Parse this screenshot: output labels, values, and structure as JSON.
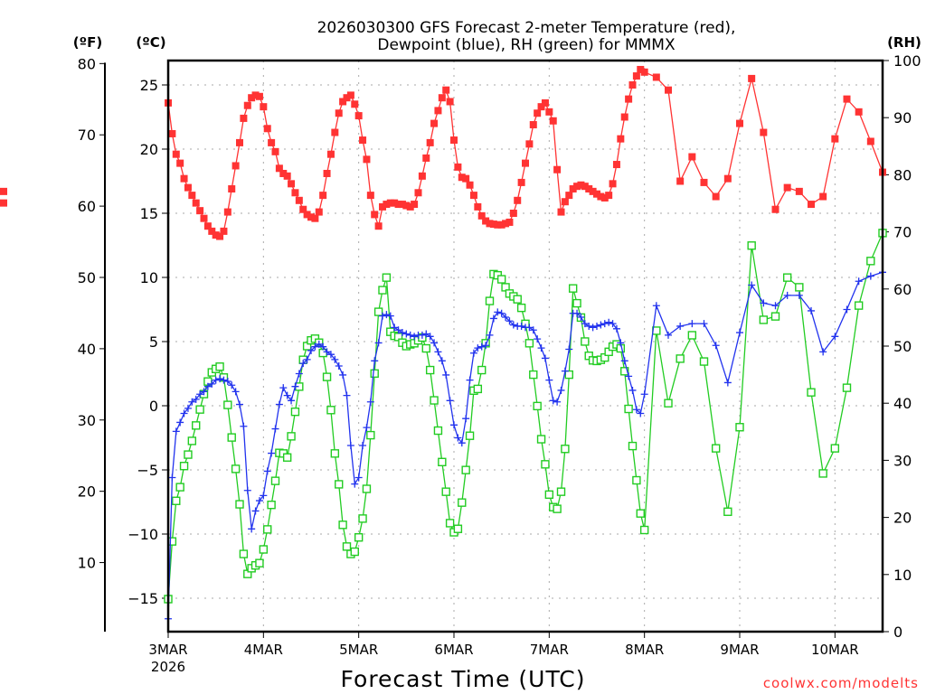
{
  "chart_data": {
    "type": "line",
    "title_line1": "2026030300 GFS Forecast 2-meter Temperature (red),",
    "title_line2": "Dewpoint (blue), RH (green) for MMMX",
    "unit_labels": {
      "fahrenheit": "(ºF)",
      "celsius": "(ºC)",
      "rh": "(RH)"
    },
    "xlabel": "Forecast Time (UTC)",
    "credit": "coolwx.com/modelts",
    "x_units": "forecast hour",
    "xlim": [
      0,
      180
    ],
    "x_ticks": [
      {
        "hour": 0,
        "label": "3MAR",
        "sublabel": "2026"
      },
      {
        "hour": 24,
        "label": "4MAR"
      },
      {
        "hour": 48,
        "label": "5MAR"
      },
      {
        "hour": 72,
        "label": "6MAR"
      },
      {
        "hour": 96,
        "label": "7MAR"
      },
      {
        "hour": 120,
        "label": "8MAR"
      },
      {
        "hour": 144,
        "label": "9MAR"
      },
      {
        "hour": 168,
        "label": "10MAR"
      }
    ],
    "celsius_axis": {
      "ylim": [
        -17.5,
        26.6
      ],
      "ticks": [
        25,
        20,
        15,
        10,
        5,
        0,
        -5,
        -10,
        -15
      ],
      "labels": [
        "25",
        "20",
        "15",
        "10",
        "5",
        "0",
        "−5",
        "−10",
        "−15"
      ]
    },
    "fahrenheit_axis": {
      "ticks": [
        80,
        70,
        60,
        50,
        40,
        30,
        20,
        10
      ],
      "labels": [
        "80",
        "70",
        "60",
        "50",
        "40",
        "30",
        "20",
        "10"
      ]
    },
    "rh_axis": {
      "ylim": [
        0,
        100
      ],
      "ticks": [
        100,
        90,
        80,
        70,
        60,
        50,
        40,
        30,
        20,
        10,
        0
      ],
      "labels": [
        "100",
        "90",
        "80",
        "70",
        "60",
        "50",
        "40",
        "30",
        "20",
        "10",
        "0"
      ]
    },
    "grid": true,
    "colors": {
      "temperature": "#ff3333",
      "dewpoint": "#2233ee",
      "rh": "#22cc22"
    },
    "hours": [
      0,
      1,
      2,
      3,
      4,
      5,
      6,
      7,
      8,
      9,
      10,
      11,
      12,
      13,
      14,
      15,
      16,
      17,
      18,
      19,
      20,
      21,
      22,
      23,
      24,
      25,
      26,
      27,
      28,
      29,
      30,
      31,
      32,
      33,
      34,
      35,
      36,
      37,
      38,
      39,
      40,
      41,
      42,
      43,
      44,
      45,
      46,
      47,
      48,
      49,
      50,
      51,
      52,
      53,
      54,
      55,
      56,
      57,
      58,
      59,
      60,
      61,
      62,
      63,
      64,
      65,
      66,
      67,
      68,
      69,
      70,
      71,
      72,
      73,
      74,
      75,
      76,
      77,
      78,
      79,
      80,
      81,
      82,
      83,
      84,
      85,
      86,
      87,
      88,
      89,
      90,
      91,
      92,
      93,
      94,
      95,
      96,
      97,
      98,
      99,
      100,
      101,
      102,
      103,
      104,
      105,
      106,
      107,
      108,
      109,
      110,
      111,
      112,
      113,
      114,
      115,
      116,
      117,
      118,
      119,
      120,
      123,
      126,
      129,
      132,
      135,
      138,
      141,
      144,
      147,
      150,
      153,
      156,
      159,
      162,
      165,
      168,
      171,
      174,
      177,
      180
    ],
    "series": [
      {
        "name": "Temperature",
        "units": "°C",
        "axis": "celsius",
        "marker": "filled-square",
        "values": [
          23.6,
          21.2,
          19.6,
          18.9,
          17.7,
          17.0,
          16.4,
          15.8,
          15.2,
          14.6,
          14.0,
          13.6,
          13.3,
          13.2,
          13.6,
          15.1,
          16.9,
          18.7,
          20.5,
          22.4,
          23.4,
          24.0,
          24.2,
          24.1,
          23.3,
          21.6,
          20.5,
          19.8,
          18.5,
          18.1,
          17.9,
          17.3,
          16.6,
          16.0,
          15.3,
          14.9,
          14.7,
          14.6,
          15.1,
          16.4,
          18.1,
          19.6,
          21.3,
          22.8,
          23.7,
          24.0,
          24.2,
          23.5,
          22.6,
          20.7,
          19.2,
          16.4,
          14.9,
          14.0,
          15.5,
          15.7,
          15.8,
          15.8,
          15.7,
          15.7,
          15.6,
          15.5,
          15.7,
          16.6,
          17.9,
          19.3,
          20.5,
          22.0,
          23.0,
          24.0,
          24.6,
          23.7,
          20.7,
          18.6,
          17.8,
          17.7,
          17.2,
          16.4,
          15.5,
          14.8,
          14.4,
          14.2,
          14.15,
          14.1,
          14.1,
          14.2,
          14.3,
          15.0,
          16.0,
          17.4,
          18.9,
          20.4,
          21.9,
          22.8,
          23.3,
          23.6,
          22.9,
          22.2,
          18.4,
          15.1,
          15.9,
          16.4,
          16.9,
          17.1,
          17.2,
          17.1,
          16.9,
          16.7,
          16.5,
          16.3,
          16.2,
          16.4,
          17.3,
          18.8,
          20.8,
          22.5,
          23.9,
          25.0,
          25.7,
          26.2,
          26.0,
          25.6,
          24.6,
          17.5,
          19.4,
          17.4,
          16.3,
          17.7,
          22.0,
          25.5,
          21.3,
          15.3,
          17.0,
          16.7,
          15.7,
          16.3,
          20.8,
          23.9,
          22.9,
          20.6,
          18.2,
          16.7,
          15.8
        ]
      },
      {
        "name": "Dewpoint",
        "units": "°C",
        "axis": "celsius",
        "marker": "plus",
        "values": [
          -16.6,
          -5.6,
          -2.0,
          -1.3,
          -0.6,
          -0.2,
          0.3,
          0.5,
          0.9,
          1.1,
          1.5,
          1.7,
          2.0,
          2.1,
          2.0,
          1.9,
          1.6,
          1.1,
          0.1,
          -1.6,
          -6.6,
          -9.6,
          -8.2,
          -7.4,
          -7.0,
          -5.1,
          -3.7,
          -1.8,
          0.1,
          1.4,
          0.8,
          0.4,
          1.5,
          2.5,
          3.3,
          3.6,
          4.3,
          4.6,
          4.8,
          4.6,
          4.2,
          4.0,
          3.6,
          3.1,
          2.4,
          0.8,
          -3.1,
          -6.1,
          -5.6,
          -3.1,
          -1.7,
          0.3,
          3.5,
          4.9,
          7.0,
          7.1,
          7.0,
          6.1,
          5.9,
          5.7,
          5.6,
          5.5,
          5.4,
          5.5,
          5.5,
          5.6,
          5.4,
          4.9,
          4.2,
          3.5,
          2.4,
          0.4,
          -1.5,
          -2.5,
          -2.9,
          -1.0,
          2.0,
          4.1,
          4.5,
          4.6,
          4.7,
          5.5,
          6.8,
          7.3,
          7.2,
          6.9,
          6.6,
          6.3,
          6.2,
          6.2,
          6.1,
          6.1,
          5.9,
          5.2,
          4.5,
          3.7,
          2.0,
          0.4,
          0.3,
          1.2,
          2.7,
          4.4,
          7.2,
          7.2,
          6.9,
          6.4,
          6.2,
          6.1,
          6.2,
          6.3,
          6.4,
          6.5,
          6.4,
          6.0,
          4.9,
          3.5,
          2.3,
          1.2,
          -0.3,
          -0.6,
          0.9,
          7.8,
          5.5,
          6.2,
          6.4,
          6.4,
          4.7,
          1.8,
          5.7,
          9.4,
          8.0,
          7.8,
          8.6,
          8.6,
          7.4,
          4.2,
          5.4,
          7.5,
          9.7,
          10.1,
          10.4
        ]
      },
      {
        "name": "RH",
        "units": "%",
        "axis": "rh",
        "marker": "open-square",
        "values": [
          5.7,
          15.8,
          22.9,
          25.3,
          29.0,
          31.0,
          33.4,
          36.1,
          38.9,
          41.6,
          43.8,
          45.4,
          46.0,
          46.4,
          44.5,
          39.7,
          34.0,
          28.5,
          22.3,
          13.6,
          10.1,
          11.1,
          11.6,
          12.0,
          14.4,
          17.9,
          22.2,
          26.4,
          31.3,
          31.2,
          30.5,
          34.2,
          38.5,
          42.9,
          47.6,
          50.0,
          51.0,
          51.3,
          50.6,
          48.8,
          44.6,
          38.8,
          31.2,
          25.8,
          18.7,
          14.9,
          13.6,
          14.0,
          16.5,
          19.8,
          25.0,
          34.4,
          45.2,
          56.0,
          59.8,
          62.0,
          52.5,
          51.8,
          51.6,
          50.6,
          50.0,
          50.3,
          50.5,
          51.0,
          51.5,
          49.6,
          45.8,
          40.5,
          35.2,
          29.7,
          24.5,
          19.0,
          17.4,
          18.0,
          22.6,
          28.3,
          34.3,
          42.2,
          42.5,
          45.8,
          50.5,
          57.9,
          62.6,
          62.4,
          61.7,
          60.3,
          59.2,
          58.7,
          58.2,
          56.7,
          53.9,
          50.5,
          45.0,
          39.5,
          33.7,
          29.3,
          24.0,
          21.8,
          21.5,
          24.5,
          32.0,
          45.0,
          60.1,
          57.5,
          55.0,
          50.8,
          48.3,
          47.5,
          47.4,
          47.6,
          48.0,
          49.0,
          49.9,
          50.3,
          49.6,
          45.6,
          39.0,
          32.5,
          26.5,
          20.7,
          17.8,
          52.7,
          40.0,
          47.8,
          51.9,
          47.3,
          32.1,
          21.0,
          35.8,
          67.6,
          54.6,
          55.2,
          62.0,
          60.3,
          41.9,
          27.7,
          32.1,
          42.7,
          57.1,
          64.9,
          69.8
        ]
      }
    ]
  }
}
